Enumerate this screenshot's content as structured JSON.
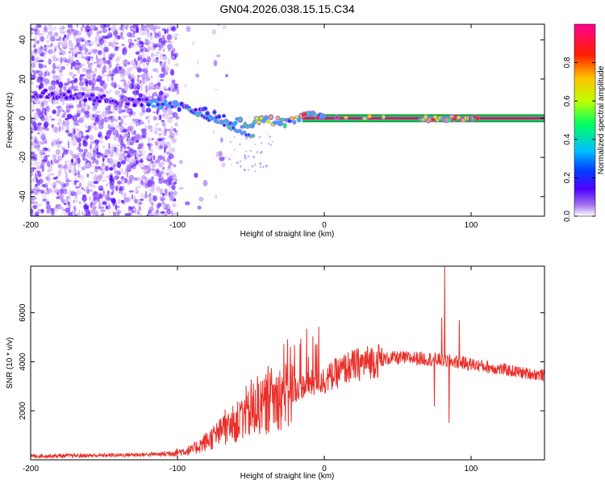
{
  "title": "GN04.2026.038.15.15.C34",
  "chart_data": [
    {
      "type": "heatmap",
      "title": "GN04.2026.038.15.15.C34",
      "xlabel": "Height of straight line (km)",
      "ylabel": "Frequency (Hz)",
      "xlim": [
        -200,
        150
      ],
      "ylim": [
        -50,
        48
      ],
      "xticks": [
        -200,
        -100,
        0,
        100
      ],
      "yticks": [
        -40,
        -20,
        0,
        20,
        40
      ],
      "colorbar": {
        "label": "Normalized spectral amplitude",
        "range": [
          0.0,
          1.0
        ],
        "ticks": [
          0.0,
          0.2,
          0.4,
          0.6,
          0.8
        ],
        "colormap": [
          "#ffffff",
          "#a070f0",
          "#5000ff",
          "#0040ff",
          "#00c0ff",
          "#00ff60",
          "#c0ff00",
          "#ffc000",
          "#ff2000",
          "#ff0090"
        ]
      },
      "ridge": {
        "description": "dominant frequency ridge",
        "height_km": [
          -200,
          -180,
          -160,
          -140,
          -120,
          -100,
          -85,
          -70,
          -55,
          -40,
          -25,
          -10,
          0,
          50,
          100,
          150
        ],
        "frequency_hz": [
          13,
          12,
          11,
          9,
          8,
          6,
          4,
          0,
          -3,
          -1,
          -2,
          2,
          0,
          0,
          0,
          0
        ]
      },
      "constant_line_hz": 0
    },
    {
      "type": "line",
      "xlabel": "Height of straight line (km)",
      "ylabel": "SNR (10 * v/v)",
      "xlim": [
        -200,
        150
      ],
      "ylim": [
        0,
        7900
      ],
      "xticks": [
        -200,
        -100,
        0,
        100
      ],
      "yticks": [
        2000,
        4000,
        6000
      ],
      "color": "#e8302a",
      "envelope": {
        "height_km": [
          -200,
          -150,
          -110,
          -90,
          -75,
          -60,
          -45,
          -30,
          -15,
          0,
          15,
          30,
          45,
          60,
          75,
          90,
          105,
          120,
          135,
          150
        ],
        "snr": [
          150,
          180,
          230,
          400,
          950,
          1500,
          2100,
          2600,
          3000,
          3250,
          3750,
          4000,
          4150,
          4150,
          4100,
          4000,
          3850,
          3700,
          3550,
          3450
        ]
      },
      "spikes": [
        {
          "height_km": -16,
          "snr": 4950
        },
        {
          "height_km": 82,
          "snr": 7900
        },
        {
          "height_km": 80,
          "snr": 5800
        },
        {
          "height_km": 85,
          "snr": 1500
        },
        {
          "height_km": 92,
          "snr": 5700
        },
        {
          "height_km": 75,
          "snr": 2200
        }
      ]
    }
  ]
}
